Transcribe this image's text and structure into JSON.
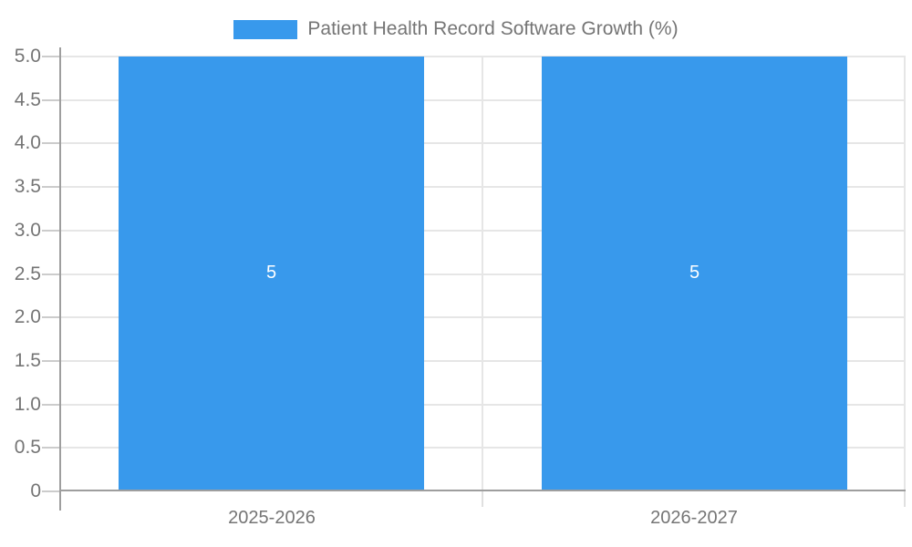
{
  "chart_data": {
    "type": "bar",
    "title": "Patient Health Record Software Growth (%)",
    "categories": [
      "2025-2026",
      "2026-2027"
    ],
    "values": [
      5,
      5
    ],
    "ylim": [
      0,
      5
    ],
    "ytick_step": 0.5,
    "yticks": [
      "0",
      "0.5",
      "1.0",
      "1.5",
      "2.0",
      "2.5",
      "3.0",
      "3.5",
      "4.0",
      "4.5",
      "5.0"
    ],
    "xlabel": "",
    "ylabel": "",
    "grid": true,
    "legend_position": "top-center",
    "colors": {
      "bar": "#3899EC",
      "bar_label_text": "#FFFFFF",
      "gridline": "#E6E6E6",
      "axis_line": "#9E9E9E",
      "tick_stub": "#CCCCCC",
      "x_tick": "#E0E0E0",
      "label_text": "#757575",
      "background": "#FFFFFF"
    }
  }
}
